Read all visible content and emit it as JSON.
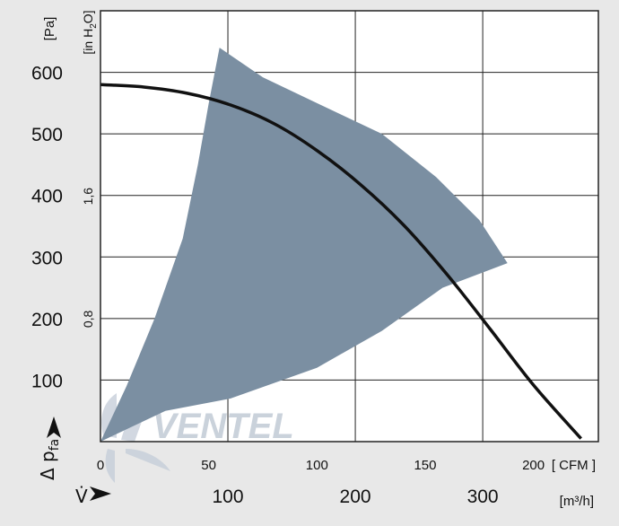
{
  "chart_data": {
    "type": "line",
    "x_axis_cfm": {
      "range": [
        0,
        230
      ],
      "ticks": [
        "0",
        "50",
        "100",
        "150",
        "200"
      ],
      "unit_label": "[ CFM ]"
    },
    "x_axis_m3h": {
      "ticks": [
        {
          "value": 100,
          "label": "100"
        },
        {
          "value": 200,
          "label": "200"
        },
        {
          "value": 300,
          "label": "300"
        }
      ],
      "unit_label": "[m³/h]",
      "symbol": "V̇"
    },
    "y_axis_pa": {
      "range": [
        0,
        700
      ],
      "ticks": [
        "100",
        "200",
        "300",
        "400",
        "500",
        "600"
      ],
      "unit_label": "[Pa]",
      "symbol": "Δ p",
      "symbol_sub": "fa"
    },
    "y_axis_inh2o": {
      "ticks": [
        {
          "value": 0.8,
          "label": "0,8"
        },
        {
          "value": 1.6,
          "label": "1,6"
        }
      ],
      "unit_label_main": "[in H",
      "unit_label_sub": "2",
      "unit_label_end": "O]"
    },
    "grid": true,
    "series": [
      {
        "kind": "curve",
        "color": "#111111",
        "x": [
          0,
          20,
          40,
          60,
          80,
          100,
          120,
          140,
          160,
          180,
          200,
          222
        ],
        "y": [
          580,
          576,
          566,
          547,
          517,
          473,
          418,
          352,
          272,
          183,
          92,
          5
        ]
      },
      {
        "kind": "area",
        "color": "#7b8fa2",
        "polygon": [
          [
            0,
            0
          ],
          [
            30,
            50
          ],
          [
            60,
            70
          ],
          [
            100,
            120
          ],
          [
            130,
            180
          ],
          [
            158,
            250
          ],
          [
            188,
            290
          ],
          [
            175,
            360
          ],
          [
            155,
            430
          ],
          [
            130,
            500
          ],
          [
            100,
            550
          ],
          [
            75,
            592
          ],
          [
            55,
            640
          ],
          [
            50,
            550
          ],
          [
            45,
            450
          ],
          [
            38,
            330
          ],
          [
            25,
            200
          ],
          [
            12,
            90
          ]
        ]
      }
    ],
    "watermark": "VENTEL"
  }
}
